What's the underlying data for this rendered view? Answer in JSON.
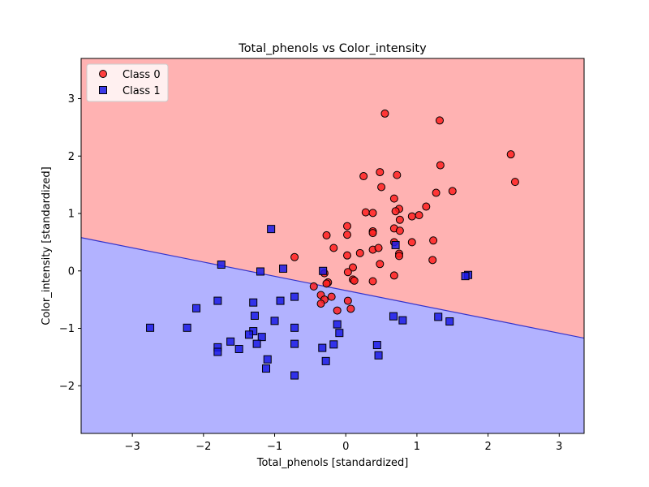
{
  "chart_data": {
    "type": "scatter",
    "title": "Total_phenols vs Color_intensity",
    "xlabel": "Total_phenols [standardized]",
    "ylabel": "Color_intensity [standardized]",
    "xlim": [
      -3.72,
      3.35
    ],
    "ylim": [
      -2.83,
      3.7
    ],
    "xticks": [
      -3,
      -2,
      -1,
      0,
      1,
      2,
      3
    ],
    "xtick_labels": [
      "−3",
      "−2",
      "−1",
      "0",
      "1",
      "2",
      "3"
    ],
    "yticks": [
      -2,
      -1,
      0,
      1,
      2,
      3
    ],
    "ytick_labels": [
      "−2",
      "−1",
      "0",
      "1",
      "2",
      "3"
    ],
    "grid": false,
    "legend_position": "top-left",
    "decision_boundary": {
      "points": [
        [
          -3.72,
          0.58
        ],
        [
          3.35,
          -1.17
        ]
      ],
      "region_above": "Class 0",
      "region_below": "Class 1",
      "region_above_color": "#ffb2b2",
      "region_below_color": "#b2b2ff",
      "line_color": "#3333cc"
    },
    "series": [
      {
        "name": "Class 0",
        "marker": "circle",
        "color": "#ff2020",
        "edge": "#000000",
        "points": [
          [
            0.55,
            2.74
          ],
          [
            1.32,
            2.62
          ],
          [
            2.32,
            2.03
          ],
          [
            2.38,
            1.55
          ],
          [
            1.33,
            1.84
          ],
          [
            0.48,
            1.72
          ],
          [
            0.72,
            1.67
          ],
          [
            0.25,
            1.65
          ],
          [
            0.5,
            1.46
          ],
          [
            1.27,
            1.36
          ],
          [
            1.5,
            1.39
          ],
          [
            0.68,
            1.26
          ],
          [
            1.13,
            1.12
          ],
          [
            0.75,
            1.08
          ],
          [
            0.7,
            1.04
          ],
          [
            0.28,
            1.02
          ],
          [
            0.38,
            1.01
          ],
          [
            0.93,
            0.95
          ],
          [
            1.03,
            0.97
          ],
          [
            0.76,
            0.89
          ],
          [
            0.02,
            0.78
          ],
          [
            0.68,
            0.74
          ],
          [
            0.38,
            0.69
          ],
          [
            0.76,
            0.7
          ],
          [
            0.38,
            0.66
          ],
          [
            -0.27,
            0.62
          ],
          [
            0.02,
            0.63
          ],
          [
            0.68,
            0.5
          ],
          [
            0.93,
            0.5
          ],
          [
            1.23,
            0.53
          ],
          [
            -0.72,
            0.24
          ],
          [
            -0.17,
            0.4
          ],
          [
            0.38,
            0.37
          ],
          [
            0.46,
            0.4
          ],
          [
            0.2,
            0.31
          ],
          [
            0.75,
            0.3
          ],
          [
            0.75,
            0.26
          ],
          [
            0.02,
            0.27
          ],
          [
            1.22,
            0.19
          ],
          [
            0.48,
            0.12
          ],
          [
            0.1,
            0.06
          ],
          [
            -0.3,
            -0.04
          ],
          [
            0.03,
            -0.02
          ],
          [
            0.68,
            -0.08
          ],
          [
            0.1,
            -0.15
          ],
          [
            0.12,
            -0.17
          ],
          [
            0.38,
            -0.18
          ],
          [
            -0.25,
            -0.2
          ],
          [
            -0.27,
            -0.22
          ],
          [
            -0.45,
            -0.27
          ],
          [
            -0.35,
            -0.42
          ],
          [
            -0.2,
            -0.45
          ],
          [
            -0.3,
            -0.5
          ],
          [
            0.03,
            -0.52
          ],
          [
            -0.35,
            -0.57
          ],
          [
            0.07,
            -0.66
          ],
          [
            -0.12,
            -0.69
          ]
        ]
      },
      {
        "name": "Class 1",
        "marker": "square",
        "color": "#1a1ae6",
        "edge": "#000000",
        "points": [
          [
            -1.05,
            0.73
          ],
          [
            -1.75,
            0.11
          ],
          [
            -0.88,
            0.04
          ],
          [
            -1.2,
            -0.01
          ],
          [
            -0.32,
            0.0
          ],
          [
            0.7,
            0.45
          ],
          [
            1.72,
            -0.07
          ],
          [
            1.68,
            -0.09
          ],
          [
            -1.3,
            -0.55
          ],
          [
            -0.92,
            -0.52
          ],
          [
            -0.72,
            -0.45
          ],
          [
            -1.8,
            -0.52
          ],
          [
            -2.1,
            -0.65
          ],
          [
            -1.28,
            -0.78
          ],
          [
            -1.0,
            -0.87
          ],
          [
            0.67,
            -0.79
          ],
          [
            0.8,
            -0.86
          ],
          [
            1.3,
            -0.8
          ],
          [
            1.46,
            -0.88
          ],
          [
            -2.75,
            -0.99
          ],
          [
            -2.23,
            -0.99
          ],
          [
            -1.3,
            -1.05
          ],
          [
            -1.36,
            -1.11
          ],
          [
            -1.18,
            -1.15
          ],
          [
            -0.72,
            -0.99
          ],
          [
            -0.12,
            -0.93
          ],
          [
            -0.09,
            -1.08
          ],
          [
            -1.62,
            -1.23
          ],
          [
            -1.25,
            -1.27
          ],
          [
            -1.8,
            -1.33
          ],
          [
            -1.8,
            -1.41
          ],
          [
            -1.5,
            -1.36
          ],
          [
            -0.72,
            -1.27
          ],
          [
            -0.33,
            -1.34
          ],
          [
            -0.17,
            -1.28
          ],
          [
            0.44,
            -1.29
          ],
          [
            0.46,
            -1.47
          ],
          [
            -1.1,
            -1.54
          ],
          [
            -0.28,
            -1.57
          ],
          [
            -1.12,
            -1.7
          ],
          [
            -0.72,
            -1.82
          ]
        ]
      }
    ]
  }
}
